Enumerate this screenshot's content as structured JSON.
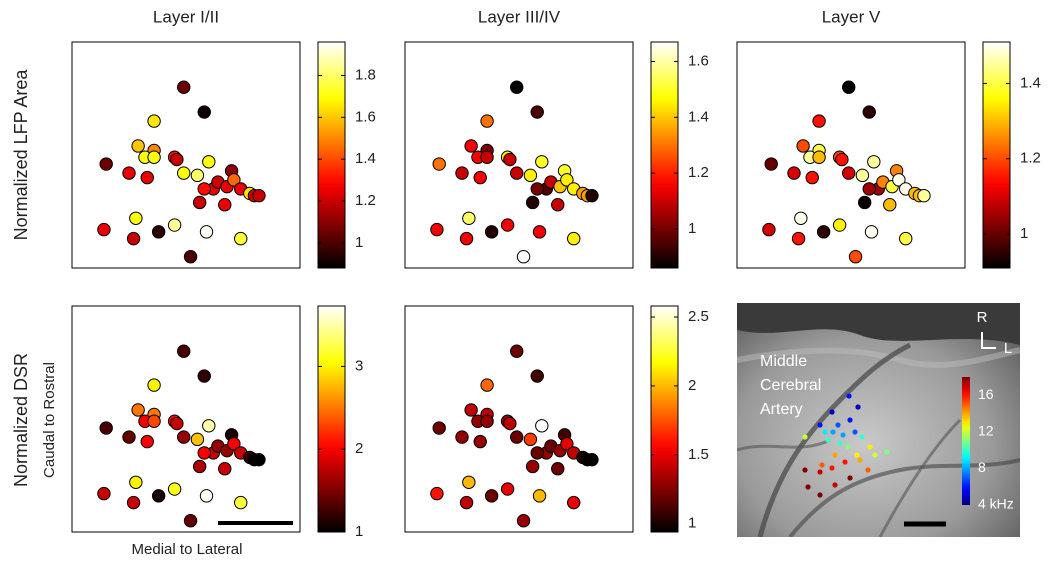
{
  "row_labels": [
    "Normalized LFP Area",
    "Normalized DSR"
  ],
  "y_label": "Caudal to Rostral",
  "x_label": "Medial to Lateral",
  "image_label": [
    "Middle",
    "Cerebral",
    "Artery"
  ],
  "compass": [
    "R",
    "L"
  ],
  "chart_data": [
    {
      "type": "scatter",
      "title": "Layer I/II",
      "colormap": "hot",
      "xlim": [
        0,
        100
      ],
      "ylim": [
        0,
        100
      ],
      "clim": [
        0.88,
        1.96
      ],
      "cticks": [
        1,
        1.2,
        1.4,
        1.6,
        1.8
      ],
      "x": [
        49,
        58,
        36,
        29,
        36,
        32,
        36,
        45,
        46,
        15,
        60,
        70,
        25,
        33,
        49,
        55,
        62,
        64,
        68,
        71,
        74,
        78,
        80,
        82,
        58,
        56,
        67,
        28,
        45,
        14,
        38,
        59,
        27,
        74,
        52
      ],
      "y": [
        80,
        69,
        65,
        54,
        52,
        49,
        49,
        49,
        48,
        46,
        47,
        43,
        42,
        40,
        42,
        41,
        35,
        38,
        36,
        39,
        35,
        33,
        32,
        32,
        35,
        29,
        28,
        22,
        19,
        17,
        16,
        16,
        13,
        13,
        5
      ],
      "values": [
        1.05,
        0.9,
        1.65,
        1.6,
        1.5,
        1.7,
        1.7,
        1.3,
        1.2,
        1.05,
        1.7,
        1.1,
        1.25,
        1.25,
        1.7,
        1.8,
        1.25,
        1.2,
        1.25,
        1.45,
        1.25,
        1.65,
        1.2,
        1.2,
        1.3,
        1.2,
        1.25,
        1.7,
        1.85,
        1.25,
        0.95,
        1.95,
        1.2,
        1.75,
        1.0
      ]
    },
    {
      "type": "scatter",
      "title": "Layer III/IV",
      "colormap": "hot",
      "xlim": [
        0,
        100
      ],
      "ylim": [
        0,
        100
      ],
      "clim": [
        0.86,
        1.67
      ],
      "cticks": [
        1,
        1.2,
        1.4,
        1.6
      ],
      "x": [
        49,
        58,
        36,
        29,
        36,
        32,
        36,
        45,
        46,
        15,
        60,
        70,
        25,
        33,
        49,
        55,
        62,
        64,
        68,
        71,
        74,
        78,
        80,
        82,
        58,
        56,
        67,
        28,
        45,
        14,
        38,
        59,
        27,
        74,
        52
      ],
      "y": [
        80,
        69,
        65,
        54,
        52,
        49,
        49,
        49,
        48,
        46,
        47,
        43,
        42,
        40,
        42,
        41,
        35,
        38,
        36,
        39,
        35,
        33,
        32,
        32,
        35,
        29,
        28,
        22,
        19,
        17,
        16,
        16,
        13,
        13,
        5
      ],
      "values": [
        0.86,
        0.95,
        1.3,
        1.15,
        1.0,
        1.15,
        1.1,
        1.45,
        1.1,
        1.3,
        1.5,
        1.5,
        1.1,
        1.15,
        1.1,
        1.45,
        0.95,
        1.1,
        1.4,
        1.45,
        1.45,
        1.35,
        1.35,
        0.9,
        1.0,
        0.9,
        1.1,
        1.55,
        1.15,
        1.15,
        0.9,
        1.15,
        1.15,
        1.45,
        1.67
      ]
    },
    {
      "type": "scatter",
      "title": "Layer V",
      "colormap": "hot",
      "xlim": [
        0,
        100
      ],
      "ylim": [
        0,
        100
      ],
      "clim": [
        0.91,
        1.51
      ],
      "cticks": [
        1,
        1.2,
        1.4
      ],
      "x": [
        49,
        58,
        36,
        29,
        36,
        32,
        36,
        45,
        46,
        15,
        60,
        70,
        25,
        33,
        49,
        55,
        62,
        64,
        68,
        71,
        74,
        78,
        80,
        82,
        58,
        56,
        67,
        28,
        45,
        14,
        38,
        59,
        27,
        74,
        52
      ],
      "y": [
        80,
        69,
        65,
        54,
        52,
        49,
        49,
        49,
        48,
        46,
        47,
        43,
        42,
        40,
        42,
        41,
        35,
        38,
        36,
        39,
        35,
        33,
        32,
        32,
        35,
        29,
        28,
        22,
        19,
        17,
        16,
        16,
        13,
        13,
        5
      ],
      "values": [
        0.91,
        0.95,
        1.15,
        1.2,
        1.4,
        1.45,
        1.3,
        1.2,
        1.15,
        1.0,
        1.45,
        1.25,
        1.1,
        1.15,
        1.1,
        1.45,
        1.05,
        1.25,
        1.4,
        1.5,
        1.5,
        1.3,
        1.3,
        1.45,
        1.05,
        0.92,
        1.3,
        1.5,
        1.35,
        1.1,
        0.95,
        1.5,
        1.15,
        1.4,
        1.2
      ]
    },
    {
      "type": "scatter",
      "colormap": "hot",
      "xlim": [
        0,
        100
      ],
      "ylim": [
        0,
        100
      ],
      "clim": [
        1,
        3.73
      ],
      "cticks": [
        1,
        2,
        3
      ],
      "x": [
        49,
        58,
        36,
        29,
        36,
        32,
        36,
        45,
        46,
        15,
        60,
        70,
        25,
        33,
        49,
        55,
        62,
        64,
        68,
        71,
        74,
        78,
        80,
        82,
        58,
        56,
        67,
        28,
        45,
        14,
        38,
        59,
        27,
        74,
        52
      ],
      "y": [
        80,
        69,
        65,
        54,
        52,
        49,
        49,
        49,
        48,
        46,
        47,
        43,
        42,
        40,
        42,
        41,
        35,
        38,
        36,
        39,
        35,
        33,
        32,
        32,
        35,
        29,
        28,
        22,
        19,
        17,
        16,
        16,
        13,
        13,
        5
      ],
      "values": [
        1.3,
        1.2,
        3.0,
        2.5,
        2.5,
        2.0,
        2.3,
        2.0,
        1.8,
        1.3,
        3.5,
        1.1,
        1.4,
        2.0,
        1.6,
        2.8,
        1.8,
        1.6,
        1.6,
        2.0,
        1.8,
        1.2,
        1.0,
        1.0,
        2.0,
        1.7,
        1.8,
        3.0,
        3.1,
        1.8,
        1.1,
        3.7,
        1.8,
        3.2,
        1.4
      ]
    },
    {
      "type": "scatter",
      "colormap": "hot",
      "xlim": [
        0,
        100
      ],
      "ylim": [
        0,
        100
      ],
      "clim": [
        0.94,
        2.58
      ],
      "cticks": [
        1,
        1.5,
        2,
        2.5
      ],
      "x": [
        49,
        58,
        36,
        29,
        36,
        32,
        36,
        45,
        46,
        15,
        60,
        70,
        25,
        33,
        49,
        55,
        62,
        64,
        68,
        71,
        74,
        78,
        80,
        82,
        58,
        56,
        67,
        28,
        45,
        14,
        38,
        59,
        27,
        74,
        52
      ],
      "y": [
        80,
        69,
        65,
        54,
        52,
        49,
        49,
        49,
        48,
        46,
        47,
        43,
        42,
        40,
        42,
        41,
        35,
        38,
        36,
        39,
        35,
        33,
        32,
        32,
        35,
        29,
        28,
        22,
        19,
        17,
        16,
        16,
        13,
        13,
        5
      ],
      "values": [
        1.2,
        1.1,
        1.8,
        1.4,
        1.4,
        1.3,
        1.3,
        1.3,
        1.4,
        1.2,
        2.58,
        1.1,
        1.3,
        1.3,
        1.2,
        1.7,
        1.3,
        1.2,
        1.3,
        1.5,
        1.4,
        1.0,
        0.95,
        0.95,
        1.2,
        1.3,
        1.2,
        2.0,
        1.5,
        1.6,
        1.2,
        2.0,
        1.4,
        1.5,
        1.3
      ]
    },
    {
      "type": "scatter",
      "colormap": "jet",
      "background": "image",
      "xlim": [
        0,
        283
      ],
      "ylim": [
        234,
        0
      ],
      "clim": [
        4,
        18
      ],
      "cticks": [
        16,
        12,
        8,
        {
          "value": 4,
          "label": "4 kHz"
        }
      ],
      "x": [
        112,
        95,
        121,
        83,
        101,
        113,
        88,
        96,
        106,
        118,
        125,
        68,
        91,
        103,
        111,
        133,
        138,
        150,
        120,
        98,
        85,
        108,
        123,
        68,
        83,
        95,
        113,
        131,
        71,
        98,
        83
      ],
      "y": [
        93,
        109,
        104,
        122,
        122,
        117,
        129,
        129,
        132,
        129,
        134,
        134,
        137,
        140,
        144,
        144,
        152,
        149,
        152,
        152,
        162,
        159,
        157,
        167,
        169,
        165,
        175,
        167,
        184,
        182,
        192
      ],
      "values": [
        6,
        5,
        5,
        6,
        7,
        6,
        9,
        8,
        8,
        7,
        10,
        12,
        10,
        10,
        11,
        13,
        12,
        11,
        13,
        14,
        15,
        16,
        14,
        18,
        17,
        16,
        18,
        15,
        18,
        17,
        18
      ]
    }
  ]
}
